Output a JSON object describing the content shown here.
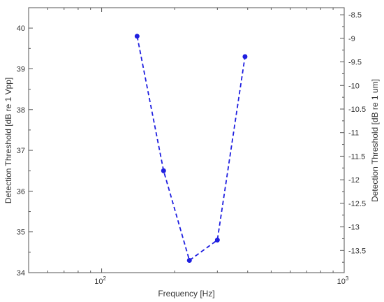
{
  "chart_data": {
    "type": "line",
    "xlabel": "Frequency [Hz]",
    "ylabel_left": "Detection Threshold [dB re 1 Vpp]",
    "ylabel_right": "Detection Threshold [dB re 1 um]",
    "x_scale": "log",
    "xlim": [
      50,
      1000
    ],
    "ylim_left": [
      34,
      40.5
    ],
    "ylim_right": [
      -13.97,
      -8.35
    ],
    "x_ticks": [
      {
        "value": 100,
        "base": "10",
        "exp": "2"
      },
      {
        "value": 1000,
        "base": "10",
        "exp": "3"
      }
    ],
    "y_ticks_left": [
      "34",
      "35",
      "36",
      "37",
      "38",
      "39",
      "40"
    ],
    "y_ticks_right": [
      "-8.5",
      "-9",
      "-9.5",
      "-10",
      "-10.5",
      "-11",
      "-11.5",
      "-12",
      "-12.5",
      "-13",
      "-13.5"
    ],
    "series": [
      {
        "x": [
          140,
          180,
          230,
          300,
          390
        ],
        "y": [
          39.8,
          36.5,
          34.3,
          34.8,
          39.3
        ]
      }
    ],
    "grid": false,
    "line_style": "dashed",
    "marker": "circle",
    "color": "#1f1fe0"
  }
}
